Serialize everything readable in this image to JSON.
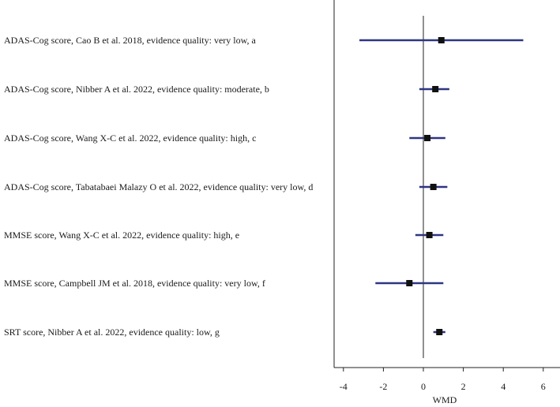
{
  "chart_data": {
    "type": "forest",
    "xlabel": "WMD",
    "xlim": [
      -4.5,
      7
    ],
    "xticks": [
      -4,
      -2,
      0,
      2,
      4,
      6
    ],
    "reference_line": 0,
    "colors": {
      "ci_line": "#2e3582",
      "point": "#111111",
      "axis": "#222222"
    },
    "rows": [
      {
        "label": "ADAS-Cog score, Cao B et al. 2018, evidence quality: very low, a",
        "estimate": 0.9,
        "lower": -3.2,
        "upper": 5.0
      },
      {
        "label": "ADAS-Cog score, Nibber A et al. 2022, evidence quality: moderate, b",
        "estimate": 0.6,
        "lower": -0.2,
        "upper": 1.3
      },
      {
        "label": "ADAS-Cog score, Wang X-C et al. 2022, evidence quality: high, c",
        "estimate": 0.2,
        "lower": -0.7,
        "upper": 1.1
      },
      {
        "label": "ADAS-Cog score, Tabatabaei Malazy O et al. 2022, evidence quality: very low, d",
        "estimate": 0.5,
        "lower": -0.2,
        "upper": 1.2
      },
      {
        "label": "MMSE score, Wang X-C et al. 2022, evidence quality: high, e",
        "estimate": 0.3,
        "lower": -0.4,
        "upper": 1.0
      },
      {
        "label": "MMSE score, Campbell JM et al. 2018, evidence quality: very low, f",
        "estimate": -0.7,
        "lower": -2.4,
        "upper": 1.0
      },
      {
        "label": "SRT score, Nibber A et al. 2022, evidence quality: low, g",
        "estimate": 0.8,
        "lower": 0.5,
        "upper": 1.1
      }
    ]
  }
}
